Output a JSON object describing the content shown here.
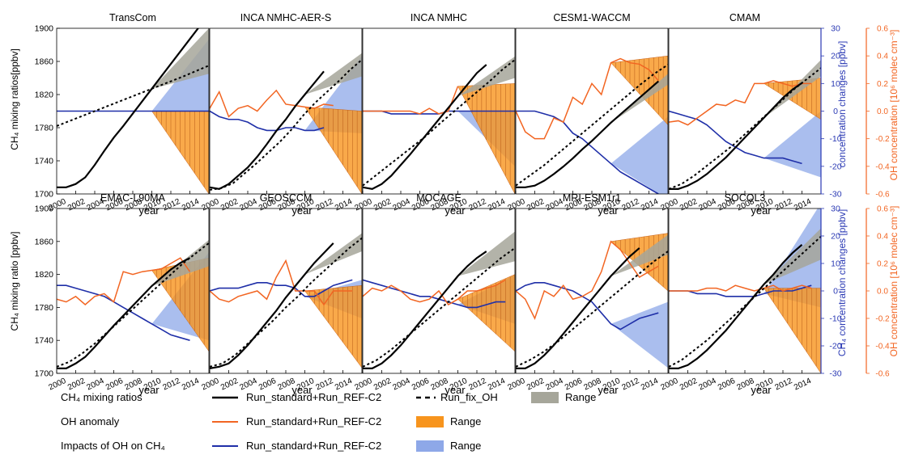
{
  "axis_labels": {
    "left_top": "CH₄ mixing ratios[ppbv]",
    "left_bottom": "CH₄ mixing ratio [ppbv]",
    "blue_top": "concentration changes [ppbv]",
    "blue_bottom": "CH₄ concentration changes [ppbv]",
    "orange_top": "OH concentration [10⁶ molec cm⁻³]",
    "orange_bottom": "OH concentration [10⁶ molec cm⁻³]",
    "x": "year"
  },
  "colors": {
    "black": "#000000",
    "orange_line": "#f26522",
    "orange_fill": "#f7941d",
    "blue_line": "#1f2fa8",
    "blue_fill": "#8ea8e8",
    "grey_fill": "#a6a69a",
    "blue_axis": "#2b3ab4",
    "orange_axis": "#f26522"
  },
  "legend": [
    {
      "label": "CH₄ mixing ratios",
      "entries": [
        {
          "text": "Run_standard+Run_REF-C2",
          "style": "black-solid"
        },
        {
          "text": "Run_fix_OH",
          "style": "black-dashed"
        },
        {
          "text": "Range",
          "style": "grey-patch"
        }
      ]
    },
    {
      "label": "OH anomaly",
      "entries": [
        {
          "text": "Run_standard+Run_REF-C2",
          "style": "orange-line"
        },
        {
          "text": "Range",
          "style": "orange-patch"
        }
      ]
    },
    {
      "label": "Impacts of OH on CH₄",
      "entries": [
        {
          "text": "Run_standard+Run_REF-C2",
          "style": "blue-line"
        },
        {
          "text": "Range",
          "style": "blue-patch"
        }
      ]
    }
  ],
  "chart_data": {
    "type": "line",
    "x_range": [
      2000,
      2016
    ],
    "x_ticks": [
      "2000",
      "2002",
      "2004",
      "2006",
      "2008",
      "2010",
      "2012",
      "2014"
    ],
    "y_left": {
      "label": "CH₄ mixing ratio [ppbv]",
      "ylim": [
        1700,
        1900
      ],
      "ticks": [
        "1700",
        "1740",
        "1780",
        "1820",
        "1860",
        "1900"
      ]
    },
    "y_blue": {
      "label": "CH₄ concentration changes [ppbv]",
      "ylim": [
        -30,
        30
      ],
      "ticks": [
        "-30",
        "-20",
        "-10",
        "0",
        "10",
        "20",
        "30"
      ]
    },
    "y_orange": {
      "label": "OH concentration [10⁶ molec cm⁻³]",
      "ylim": [
        -0.6,
        0.6
      ],
      "ticks": [
        "-0.6",
        "-0.4",
        "-0.2",
        "0.0",
        "0.2",
        "0.4",
        "0.6"
      ]
    },
    "panels": [
      {
        "title": "TransCom",
        "ch4": [
          1708,
          1708,
          1712,
          1720,
          1735,
          1752,
          1768,
          1782,
          1797,
          1812,
          1827,
          1842,
          1857,
          1872,
          1887,
          1902
        ],
        "ch4_fix": [
          1782,
          1794,
          1806,
          1818,
          1830,
          1842,
          1855
        ],
        "grey_end": [
          1845,
          1900
        ],
        "oh": null,
        "oh_range_end": [
          -0.6,
          0.0
        ],
        "blue": [
          0,
          0,
          0,
          0,
          0,
          0,
          0,
          0,
          0,
          0,
          0,
          0,
          0,
          0,
          0,
          0,
          0
        ],
        "blue_range_end": [
          0,
          26
        ]
      },
      {
        "title": "INCA NMHC-AER-S",
        "ch4": [
          1708,
          1706,
          1712,
          1722,
          1732,
          1745,
          1760,
          1776,
          1790,
          1806,
          1820,
          1834,
          1848
        ],
        "ch4_fix": [
          1705,
          1707,
          1713,
          1725,
          1737,
          1750,
          1763,
          1778,
          1795,
          1810,
          1823,
          1836,
          1850,
          1862
        ],
        "grey_end": [
          1842,
          1870
        ],
        "oh": [
          0.02,
          0.14,
          -0.04,
          0.02,
          0.04,
          0.0,
          0.08,
          0.15,
          0.05,
          0.04,
          0.03,
          0.02,
          0.05,
          0.04
        ],
        "oh_range_end": [
          -0.6,
          0.0
        ],
        "blue": [
          0,
          -2,
          -3,
          -3,
          -4,
          -6,
          -7,
          -7,
          -6,
          -6,
          -7,
          -7,
          -6
        ],
        "blue_range_end": [
          -8,
          20
        ]
      },
      {
        "title": "INCA NMHC",
        "ch4": [
          1708,
          1706,
          1712,
          1722,
          1735,
          1748,
          1762,
          1776,
          1790,
          1804,
          1818,
          1832,
          1846,
          1856
        ],
        "ch4_fix": [
          1710,
          1722,
          1734,
          1746,
          1758,
          1770,
          1784,
          1797,
          1810,
          1823,
          1836,
          1850,
          1862
        ],
        "grey_end": [
          1840,
          1866
        ],
        "oh": [
          0.0,
          0.0,
          0.0,
          0.0,
          0.0,
          0.0,
          -0.02,
          0.02,
          -0.02,
          0.0,
          0.18
        ],
        "oh_range_end": [
          -0.6,
          0.2
        ],
        "blue": [
          0,
          0,
          0,
          -1,
          -1,
          -1,
          -1,
          -1,
          -1,
          0,
          0,
          0,
          0,
          0,
          0,
          0,
          0
        ],
        "blue_range_end": [
          -20,
          0
        ]
      },
      {
        "title": "CESM1-WACCM",
        "ch4": [
          1708,
          1708,
          1710,
          1716,
          1724,
          1733,
          1743,
          1754,
          1764,
          1775,
          1786,
          1796,
          1806,
          1816,
          1826,
          1836
        ],
        "ch4_fix": [
          1710,
          1722,
          1734,
          1748,
          1762,
          1776,
          1790,
          1804,
          1818,
          1832,
          1845,
          1856
        ],
        "grey_end": [
          1832,
          1845
        ],
        "oh": [
          0.0,
          -0.15,
          -0.2,
          -0.2,
          -0.05,
          -0.08,
          0.1,
          0.05,
          0.2,
          0.12,
          0.35,
          0.38,
          0.35,
          0.34,
          0.3,
          0.22
        ],
        "oh_range_end": [
          -0.1,
          0.4
        ],
        "blue": [
          0,
          0,
          0,
          -1,
          -2,
          -4,
          -8,
          -10,
          -13,
          -16,
          -19,
          -22,
          -24,
          -26,
          -28,
          -30
        ],
        "blue_range_end": [
          -32,
          -2
        ]
      },
      {
        "title": "CMAM",
        "ch4": [
          1706,
          1706,
          1710,
          1716,
          1724,
          1734,
          1744,
          1756,
          1768,
          1780,
          1792,
          1804,
          1816,
          1826,
          1834
        ],
        "ch4_fix": [
          1706,
          1712,
          1722,
          1734,
          1746,
          1758,
          1772,
          1786,
          1800,
          1814,
          1828,
          1840,
          1852
        ],
        "grey_end": [
          1842,
          1862
        ],
        "oh": [
          -0.08,
          -0.07,
          -0.1,
          -0.05,
          0.0,
          0.05,
          0.04,
          0.08,
          0.06,
          0.2,
          0.2,
          0.22,
          0.2,
          0.18,
          0.2,
          0.2
        ],
        "oh_range_end": [
          -0.06,
          0.24
        ],
        "blue": [
          0,
          -1,
          -2,
          -3,
          -5,
          -8,
          -11,
          -13,
          -15,
          -16,
          -17,
          -17,
          -17,
          -18,
          -19
        ],
        "blue_range_end": [
          -24,
          0
        ]
      },
      {
        "title": "EMAC-L90MA",
        "ch4": [
          1706,
          1706,
          1712,
          1720,
          1732,
          1745,
          1758,
          1770,
          1782,
          1794,
          1806,
          1816,
          1826,
          1834,
          1840
        ],
        "ch4_fix": [
          1708,
          1714,
          1724,
          1736,
          1750,
          1764,
          1778,
          1792,
          1806,
          1820,
          1834,
          1846,
          1858
        ],
        "grey_end": [
          1830,
          1862
        ],
        "oh": [
          -0.06,
          -0.08,
          -0.04,
          -0.1,
          -0.04,
          -0.02,
          -0.08,
          0.14,
          0.12,
          0.14,
          0.15,
          0.16,
          0.2,
          0.24,
          0.14
        ],
        "oh_range_end": [
          -0.44,
          0.24
        ],
        "blue": [
          2,
          2,
          1,
          0,
          -1,
          -2,
          -4,
          -6,
          -8,
          -10,
          -12,
          -14,
          -16,
          -17,
          -18
        ],
        "blue_range_end": [
          -18,
          14
        ]
      },
      {
        "title": "GEOSCCM",
        "ch4": [
          1706,
          1708,
          1712,
          1722,
          1734,
          1748,
          1762,
          1776,
          1792,
          1806,
          1820,
          1834,
          1846,
          1858
        ],
        "ch4_fix": [
          1708,
          1712,
          1722,
          1736,
          1750,
          1764,
          1780,
          1794,
          1810,
          1824,
          1838,
          1852,
          1864
        ],
        "grey_end": [
          1848,
          1870
        ],
        "oh": [
          0.0,
          -0.06,
          -0.08,
          -0.04,
          -0.02,
          0.0,
          -0.06,
          0.1,
          0.22,
          0.0,
          0.0,
          0.0,
          -0.1,
          0.0,
          0.0,
          0.0
        ],
        "oh_range_end": [
          -0.56,
          0.04
        ],
        "blue": [
          0,
          1,
          1,
          1,
          2,
          3,
          3,
          2,
          2,
          1,
          -2,
          -2,
          0,
          2,
          3,
          4
        ],
        "blue_range_end": [
          -10,
          4
        ]
      },
      {
        "title": "MOCAGE",
        "ch4": [
          1706,
          1706,
          1712,
          1722,
          1734,
          1748,
          1762,
          1776,
          1790,
          1804,
          1818,
          1830,
          1840,
          1848
        ],
        "ch4_fix": [
          1708,
          1716,
          1728,
          1742,
          1756,
          1770,
          1784,
          1798,
          1812,
          1826,
          1840,
          1852
        ],
        "grey_end": [
          1836,
          1872
        ],
        "oh": [
          -0.04,
          0.02,
          0.0,
          0.04,
          0.0,
          -0.06,
          -0.08,
          -0.06,
          0.0,
          -0.1,
          -0.06,
          0.0,
          0.0,
          0.02,
          0.04,
          0.08
        ],
        "oh_range_end": [
          -0.44,
          0.12
        ],
        "blue": [
          4,
          3,
          2,
          1,
          0,
          -1,
          -2,
          -2,
          -3,
          -4,
          -5,
          -6,
          -6,
          -5,
          -4,
          -4
        ],
        "blue_range_end": [
          -12,
          6
        ]
      },
      {
        "title": "MRI-ESM1r1",
        "ch4": [
          1706,
          1706,
          1712,
          1722,
          1734,
          1748,
          1762,
          1776,
          1790,
          1804,
          1818,
          1830,
          1842,
          1852
        ],
        "ch4_fix": [
          1708,
          1716,
          1726,
          1738,
          1752,
          1766,
          1780,
          1794,
          1808,
          1822,
          1836,
          1848
        ],
        "grey_end": [
          1844,
          1868
        ],
        "oh": [
          0.0,
          -0.06,
          -0.2,
          0.0,
          -0.04,
          0.04,
          -0.06,
          -0.04,
          0.0,
          0.14,
          0.36,
          0.3,
          0.2,
          0.1,
          0.14,
          0.18
        ],
        "oh_range_end": [
          0.0,
          0.42
        ],
        "blue": [
          0,
          2,
          3,
          3,
          2,
          1,
          0,
          -2,
          -4,
          -8,
          -12,
          -14,
          -12,
          -10,
          -9,
          -8
        ],
        "blue_range_end": [
          -28,
          -4
        ]
      },
      {
        "title": "SOCOL3",
        "ch4": [
          1706,
          1706,
          1710,
          1718,
          1728,
          1740,
          1752,
          1766,
          1780,
          1794,
          1808,
          1820,
          1834,
          1846,
          1856
        ],
        "ch4_fix": [
          1708,
          1716,
          1728,
          1740,
          1754,
          1768,
          1782,
          1796,
          1810,
          1824,
          1838,
          1852,
          1866
        ],
        "grey_end": [
          1838,
          1876
        ],
        "oh": [
          0.0,
          0.0,
          0.0,
          0.0,
          0.02,
          0.02,
          0.0,
          0.04,
          0.02,
          0.0,
          0.02,
          0.04,
          0.0,
          0.02,
          0.04,
          0.02
        ],
        "oh_range_end": [
          -0.6,
          0.02
        ],
        "blue": [
          0,
          0,
          0,
          -1,
          -1,
          -1,
          -2,
          -2,
          -2,
          -2,
          -1,
          0,
          0,
          0,
          1,
          2
        ],
        "blue_range_end": [
          -6,
          32
        ]
      }
    ]
  }
}
